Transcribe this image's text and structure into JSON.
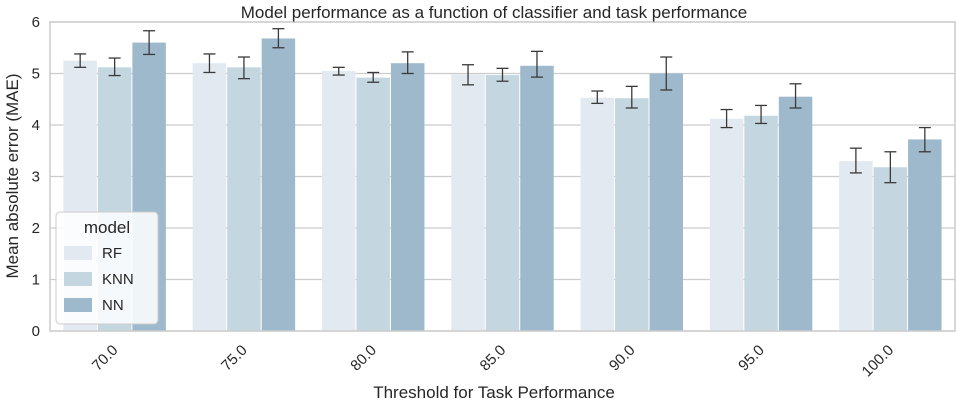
{
  "chart_data": {
    "type": "bar",
    "title": "Model performance as a function of classifier and task performance",
    "xlabel": "Threshold for Task Performance",
    "ylabel": "Mean absolute error (MAE)",
    "ylim": [
      0,
      6
    ],
    "yticks": [
      "0",
      "1",
      "2",
      "3",
      "4",
      "5",
      "6"
    ],
    "categories": [
      "70.0",
      "75.0",
      "80.0",
      "85.0",
      "90.0",
      "95.0",
      "100.0"
    ],
    "grid": "horizontal",
    "legend": {
      "title": "model",
      "placement": "lower-left"
    },
    "series": [
      {
        "name": "RF",
        "color": "#e2e9f1",
        "values": [
          5.25,
          5.2,
          5.05,
          4.98,
          4.53,
          4.12,
          3.3
        ],
        "err_low": [
          5.12,
          5.02,
          4.97,
          4.78,
          4.42,
          3.95,
          3.07
        ],
        "err_high": [
          5.38,
          5.38,
          5.12,
          5.17,
          4.66,
          4.3,
          3.55
        ]
      },
      {
        "name": "KNN",
        "color": "#c4d6e0",
        "values": [
          5.12,
          5.12,
          4.92,
          4.97,
          4.52,
          4.18,
          3.18
        ],
        "err_low": [
          4.96,
          4.9,
          4.83,
          4.85,
          4.33,
          4.03,
          2.88
        ],
        "err_high": [
          5.3,
          5.32,
          5.02,
          5.1,
          4.75,
          4.38,
          3.48
        ]
      },
      {
        "name": "NN",
        "color": "#9db9cb",
        "values": [
          5.6,
          5.68,
          5.2,
          5.15,
          5.0,
          4.55,
          3.72
        ],
        "err_low": [
          5.37,
          5.5,
          5.0,
          4.93,
          4.68,
          4.33,
          3.48
        ],
        "err_high": [
          5.83,
          5.87,
          5.42,
          5.43,
          5.32,
          4.8,
          3.95
        ]
      }
    ],
    "colors": {
      "background": "#ffffff",
      "frame": "#cccccc",
      "grid": "#cccccc",
      "errorbar": "#3a3a3a",
      "text": "#262626"
    }
  }
}
